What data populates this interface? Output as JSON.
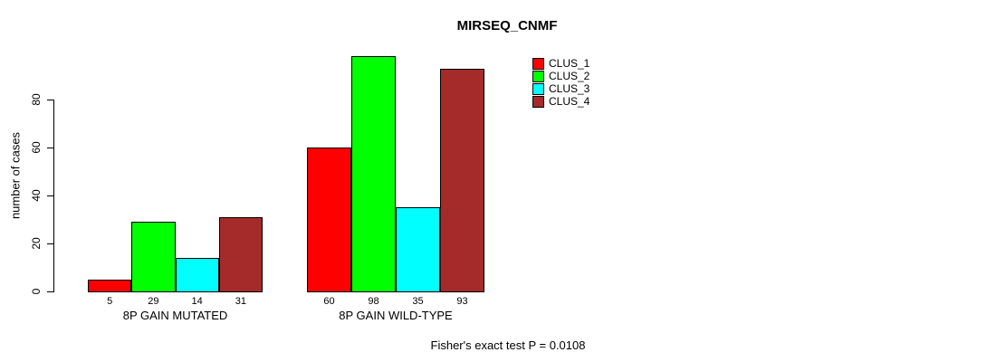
{
  "chart_data": {
    "type": "bar",
    "title": "MIRSEQ_CNMF",
    "xlabel": "",
    "ylabel": "number of cases",
    "ylim": [
      0,
      100
    ],
    "yticks": [
      0,
      20,
      40,
      60,
      80
    ],
    "grid": false,
    "legend_position": "top-right",
    "categories": [
      "8P GAIN MUTATED",
      "8P GAIN WILD-TYPE"
    ],
    "series": [
      {
        "name": "CLUS_1",
        "color": "#FF0000",
        "values": [
          5,
          60
        ]
      },
      {
        "name": "CLUS_2",
        "color": "#00FF00",
        "values": [
          29,
          98
        ]
      },
      {
        "name": "CLUS_3",
        "color": "#00FFFF",
        "values": [
          14,
          35
        ]
      },
      {
        "name": "CLUS_4",
        "color": "#A52A2A",
        "values": [
          31,
          93
        ]
      }
    ],
    "bar_value_labels": [
      [
        5,
        29,
        14,
        31
      ],
      [
        60,
        98,
        35,
        93
      ]
    ],
    "annotation": "Fisher's exact test P = 0.0108",
    "axis_color": "#000000",
    "text_color": "#000000"
  }
}
